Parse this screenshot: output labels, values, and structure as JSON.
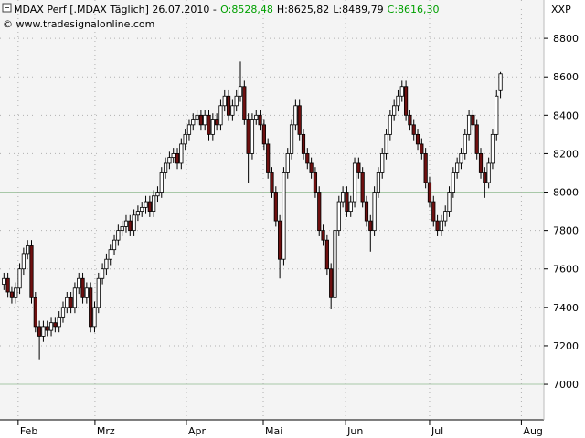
{
  "chart_data": {
    "type": "candlestick",
    "title": "MDAX Perf [.MDAX  Täglich] 26.07.2010 -",
    "header_values": [
      {
        "text": "O:8528,48",
        "color": "#00a000"
      },
      {
        "text": "H:8625,82",
        "color": "#000000"
      },
      {
        "text": "L:8489,79",
        "color": "#000000"
      },
      {
        "text": "C:8616,30",
        "color": "#00a000"
      }
    ],
    "source": "© www.tradesignalonline.com",
    "unit": "XXP",
    "open": [
      7520,
      7550,
      7480,
      7450,
      7500,
      7600,
      7680,
      7720,
      7450,
      7300,
      7250,
      7300,
      7280,
      7320,
      7300,
      7350,
      7400,
      7450,
      7400,
      7500,
      7550,
      7450,
      7500,
      7300,
      7400,
      7550,
      7600,
      7650,
      7700,
      7750,
      7800,
      7820,
      7850,
      7800,
      7880,
      7900,
      7920,
      7950,
      7900,
      7980,
      8000,
      8100,
      8150,
      8180,
      8200,
      8150,
      8250,
      8300,
      8350,
      8380,
      8400,
      8350,
      8400,
      8300,
      8380,
      8350,
      8450,
      8500,
      8400,
      8450,
      8500,
      8550,
      8380,
      8200,
      8380,
      8400,
      8350,
      8250,
      8100,
      8000,
      7850,
      7650,
      8100,
      8200,
      8350,
      8450,
      8300,
      8200,
      8150,
      8100,
      8000,
      7800,
      7750,
      7600,
      7450,
      7800,
      7950,
      8000,
      7900,
      7950,
      8150,
      8100,
      7950,
      7850,
      7800,
      8000,
      8100,
      8200,
      8300,
      8400,
      8450,
      8500,
      8550,
      8400,
      8350,
      8300,
      8250,
      8200,
      8050,
      7950,
      7850,
      7800,
      7850,
      7900,
      8000,
      8100,
      8150,
      8200,
      8300,
      8400,
      8350,
      8200,
      8100,
      8050,
      8150,
      8300,
      8528.48
    ],
    "high": [
      7580,
      7580,
      7510,
      7530,
      7630,
      7710,
      7750,
      7750,
      7480,
      7330,
      7330,
      7330,
      7350,
      7350,
      7380,
      7430,
      7480,
      7480,
      7530,
      7580,
      7580,
      7530,
      7530,
      7430,
      7580,
      7630,
      7680,
      7730,
      7780,
      7830,
      7850,
      7880,
      7880,
      7910,
      7930,
      7950,
      7980,
      7980,
      8010,
      8030,
      8130,
      8180,
      8210,
      8230,
      8230,
      8280,
      8330,
      8380,
      8410,
      8430,
      8430,
      8430,
      8430,
      8410,
      8410,
      8480,
      8530,
      8530,
      8480,
      8530,
      8680,
      8580,
      8410,
      8410,
      8430,
      8430,
      8380,
      8280,
      8130,
      8030,
      7880,
      8130,
      8230,
      8380,
      8480,
      8480,
      8330,
      8230,
      8180,
      8130,
      8030,
      7830,
      7780,
      7630,
      7830,
      7980,
      8030,
      8030,
      7980,
      8180,
      8180,
      8130,
      7980,
      7880,
      8030,
      8130,
      8230,
      8330,
      8430,
      8480,
      8530,
      8580,
      8580,
      8430,
      8380,
      8330,
      8280,
      8230,
      8080,
      7980,
      7880,
      7880,
      7930,
      8030,
      8130,
      8180,
      8230,
      8330,
      8430,
      8430,
      8380,
      8230,
      8130,
      8180,
      8330,
      8530,
      8625.82
    ],
    "low": [
      7490,
      7450,
      7420,
      7420,
      7470,
      7570,
      7650,
      7420,
      7270,
      7130,
      7220,
      7250,
      7250,
      7270,
      7270,
      7320,
      7370,
      7370,
      7370,
      7470,
      7420,
      7420,
      7270,
      7270,
      7370,
      7520,
      7570,
      7620,
      7670,
      7720,
      7770,
      7790,
      7770,
      7770,
      7850,
      7870,
      7890,
      7870,
      7870,
      7950,
      7970,
      8070,
      8120,
      8150,
      8120,
      8120,
      8220,
      8270,
      8320,
      8350,
      8320,
      8320,
      8270,
      8270,
      8320,
      8320,
      8420,
      8370,
      8370,
      8420,
      8470,
      8350,
      8050,
      8170,
      8350,
      8320,
      8220,
      8070,
      7970,
      7820,
      7550,
      7620,
      8070,
      8170,
      8320,
      8270,
      8170,
      8120,
      8070,
      7970,
      7770,
      7720,
      7570,
      7390,
      7420,
      7770,
      7920,
      7870,
      7870,
      7920,
      8070,
      7920,
      7820,
      7690,
      7770,
      7970,
      8070,
      8170,
      8270,
      8370,
      8420,
      8470,
      8370,
      8320,
      8270,
      8220,
      8170,
      8020,
      7920,
      7820,
      7770,
      7770,
      7820,
      7870,
      7970,
      8070,
      8120,
      8170,
      8270,
      8320,
      8170,
      8070,
      7970,
      8020,
      8120,
      8270,
      8489.79
    ],
    "close": [
      7550,
      7480,
      7450,
      7500,
      7600,
      7680,
      7720,
      7450,
      7300,
      7250,
      7300,
      7280,
      7320,
      7300,
      7350,
      7400,
      7450,
      7400,
      7500,
      7550,
      7450,
      7500,
      7300,
      7400,
      7550,
      7600,
      7650,
      7700,
      7750,
      7800,
      7820,
      7850,
      7800,
      7880,
      7900,
      7920,
      7950,
      7900,
      7980,
      8000,
      8100,
      8150,
      8180,
      8200,
      8150,
      8250,
      8300,
      8350,
      8380,
      8400,
      8350,
      8400,
      8300,
      8380,
      8350,
      8450,
      8500,
      8400,
      8450,
      8500,
      8550,
      8380,
      8200,
      8380,
      8400,
      8350,
      8250,
      8100,
      8000,
      7850,
      7650,
      8100,
      8200,
      8350,
      8450,
      8300,
      8200,
      8150,
      8100,
      8000,
      7800,
      7750,
      7600,
      7450,
      7800,
      7950,
      8000,
      7900,
      7950,
      8150,
      8100,
      7950,
      7850,
      7800,
      8000,
      8100,
      8200,
      8300,
      8400,
      8450,
      8500,
      8550,
      8400,
      8350,
      8300,
      8250,
      8200,
      8050,
      7950,
      7850,
      7800,
      7850,
      7900,
      8000,
      8100,
      8150,
      8200,
      8300,
      8400,
      8350,
      8200,
      8100,
      8050,
      8150,
      8300,
      8500,
      8616.3
    ],
    "up_color": "#ffffff",
    "down_color": "#6e1010",
    "xlim": [
      -1,
      137
    ],
    "xticks": [
      {
        "value": 3.6,
        "label": "Feb"
      },
      {
        "value": 23.1,
        "label": "Mrz"
      },
      {
        "value": 46.3,
        "label": "Apr"
      },
      {
        "value": 65.8,
        "label": "Mai"
      },
      {
        "value": 86.7,
        "label": "Jun"
      },
      {
        "value": 108.0,
        "label": "Jul"
      },
      {
        "value": 131.3,
        "label": "Aug"
      }
    ],
    "ylim": [
      6815,
      9000
    ],
    "yticks": [
      7000,
      7200,
      7400,
      7600,
      7800,
      8000,
      8200,
      8400,
      8600,
      8800
    ],
    "grid": true,
    "highlighted_levels": [
      8000,
      7000
    ]
  }
}
